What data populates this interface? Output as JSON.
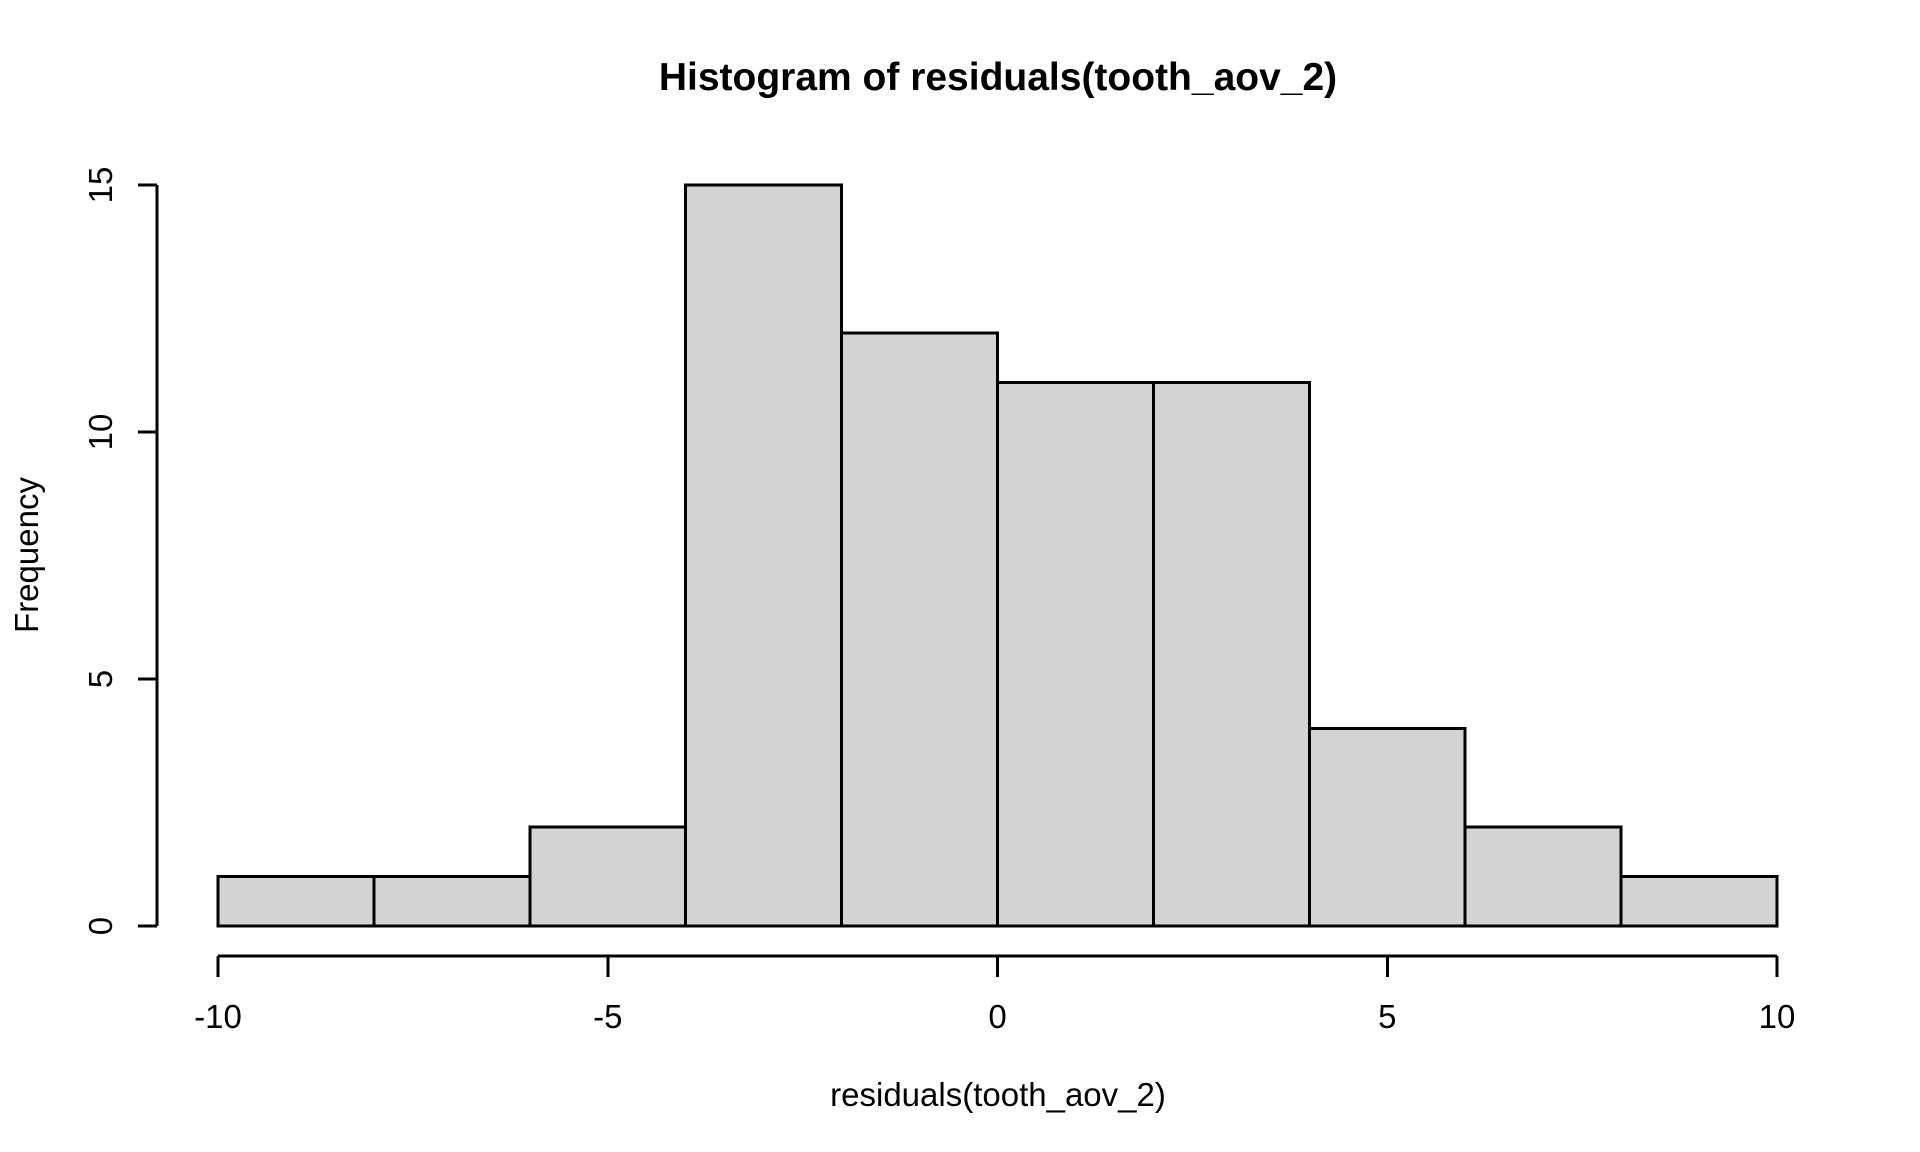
{
  "chart_data": {
    "type": "bar",
    "subtype": "histogram",
    "title": "Histogram of residuals(tooth_aov_2)",
    "xlabel": "residuals(tooth_aov_2)",
    "ylabel": "Frequency",
    "bin_breaks": [
      -10,
      -8,
      -6,
      -4,
      -2,
      0,
      2,
      4,
      6,
      8,
      10
    ],
    "counts": [
      1,
      1,
      2,
      15,
      12,
      11,
      11,
      4,
      2,
      1
    ],
    "x_ticks": [
      -10,
      -5,
      0,
      5,
      10
    ],
    "x_tick_labels": [
      "-10",
      "-5",
      "0",
      "5",
      "10"
    ],
    "y_ticks": [
      0,
      5,
      10,
      15
    ],
    "y_tick_labels": [
      "0",
      "5",
      "10",
      "15"
    ],
    "xlim": [
      -10,
      10
    ],
    "ylim": [
      0,
      15
    ],
    "grid": false,
    "legend": "none",
    "colors": {
      "bar_fill": "#d3d3d3",
      "bar_border": "#000000",
      "axis": "#000000",
      "text": "#000000",
      "background": "#ffffff"
    }
  }
}
